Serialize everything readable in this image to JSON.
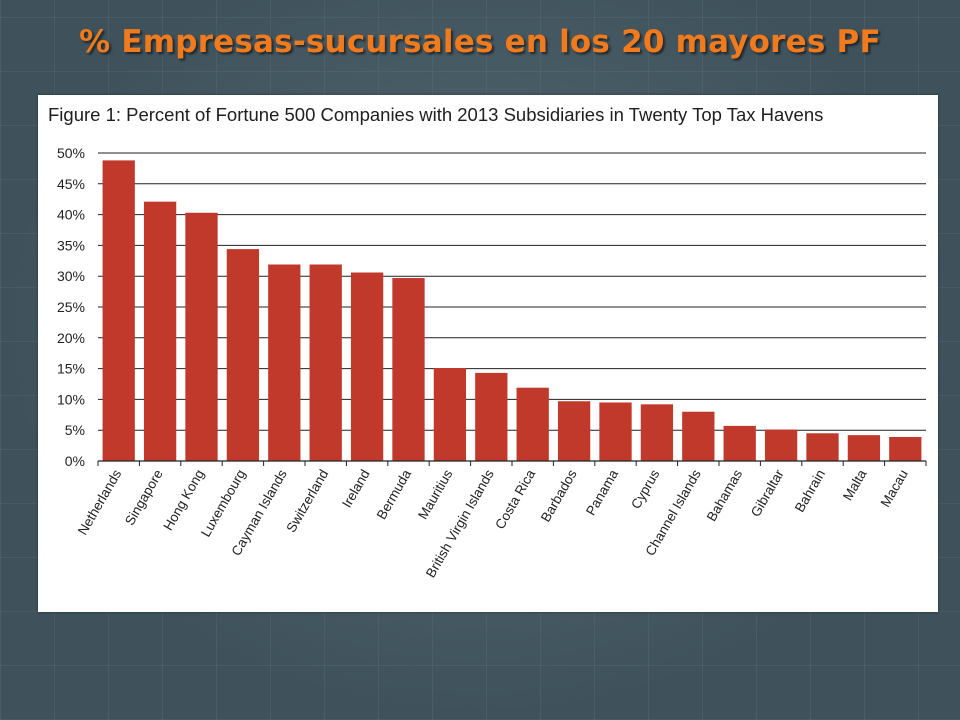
{
  "slide": {
    "title": "% Empresas-sucursales en los 20 mayores PF"
  },
  "colors": {
    "bar": "#c0392b",
    "title": "#f07a1c",
    "gridline": "#222222"
  },
  "chart_data": {
    "type": "bar",
    "title": "Figure 1: Percent of Fortune 500 Companies with 2013 Subsidiaries in Twenty Top Tax Havens",
    "xlabel": "",
    "ylabel": "",
    "ylim": [
      0,
      50
    ],
    "y_tick_values": [
      0,
      5,
      10,
      15,
      20,
      25,
      30,
      35,
      40,
      45,
      50
    ],
    "y_tick_labels": [
      "0%",
      "5%",
      "10%",
      "15%",
      "20%",
      "25%",
      "30%",
      "35%",
      "40%",
      "45%",
      "50%"
    ],
    "grid": true,
    "categories": [
      "Netherlands",
      "Singapore",
      "Hong Kong",
      "Luxembourg",
      "Cayman Islands",
      "Switzerland",
      "Ireland",
      "Bermuda",
      "Mauritius",
      "British Virgin Islands",
      "Costa Rica",
      "Barbados",
      "Panama",
      "Cyprus",
      "Channel Islands",
      "Bahamas",
      "Gibraltar",
      "Bahrain",
      "Malta",
      "Macau"
    ],
    "values": [
      48.8,
      42.1,
      40.3,
      34.4,
      31.9,
      31.9,
      30.6,
      29.7,
      15.1,
      14.3,
      11.9,
      9.7,
      9.5,
      9.2,
      8.0,
      5.7,
      5.1,
      4.5,
      4.2,
      3.9
    ]
  }
}
